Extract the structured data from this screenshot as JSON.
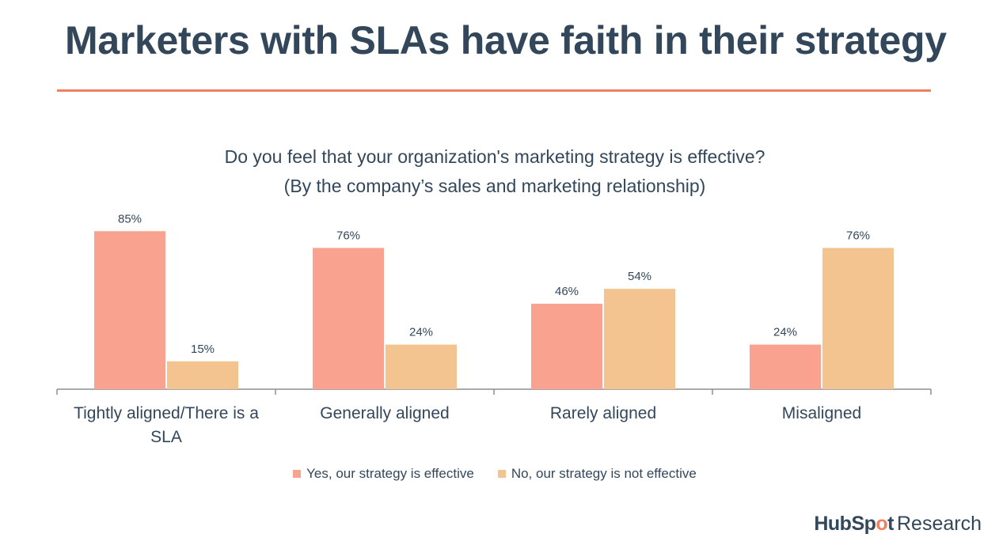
{
  "header": {
    "title": "Marketers with SLAs have faith in their strategy"
  },
  "colors": {
    "accent": "#f07f5f",
    "text": "#33475b",
    "yes": "#f9a28f",
    "no": "#f3c48f",
    "axis": "#8a8f95"
  },
  "chart_data": {
    "type": "bar",
    "title_line1": "Do you feel that your organization's marketing strategy is effective?",
    "title_line2": "(By the company’s sales and marketing relationship)",
    "categories": [
      "Tightly aligned/There is a SLA",
      "Generally aligned",
      "Rarely aligned",
      "Misaligned"
    ],
    "category_lines": [
      [
        "Tightly aligned/There is a",
        "SLA"
      ],
      [
        "Generally aligned"
      ],
      [
        "Rarely aligned"
      ],
      [
        "Misaligned"
      ]
    ],
    "series": [
      {
        "name": "Yes, our strategy is effective",
        "values": [
          85,
          76,
          46,
          24
        ],
        "labels": [
          "85%",
          "76%",
          "46%",
          "24%"
        ]
      },
      {
        "name": "No, our strategy is not effective",
        "values": [
          15,
          24,
          54,
          76
        ],
        "labels": [
          "15%",
          "24%",
          "54%",
          "76%"
        ]
      }
    ],
    "ylim": [
      0,
      100
    ],
    "grid": false,
    "legend_position": "bottom"
  },
  "legend": {
    "yes_label": "Yes, our strategy is effective",
    "no_label": "No, our strategy is not effective"
  },
  "branding": {
    "logo_hub": "HubSp",
    "logo_sprocket": "o",
    "logo_tail": "t",
    "logo_research": "Research"
  }
}
